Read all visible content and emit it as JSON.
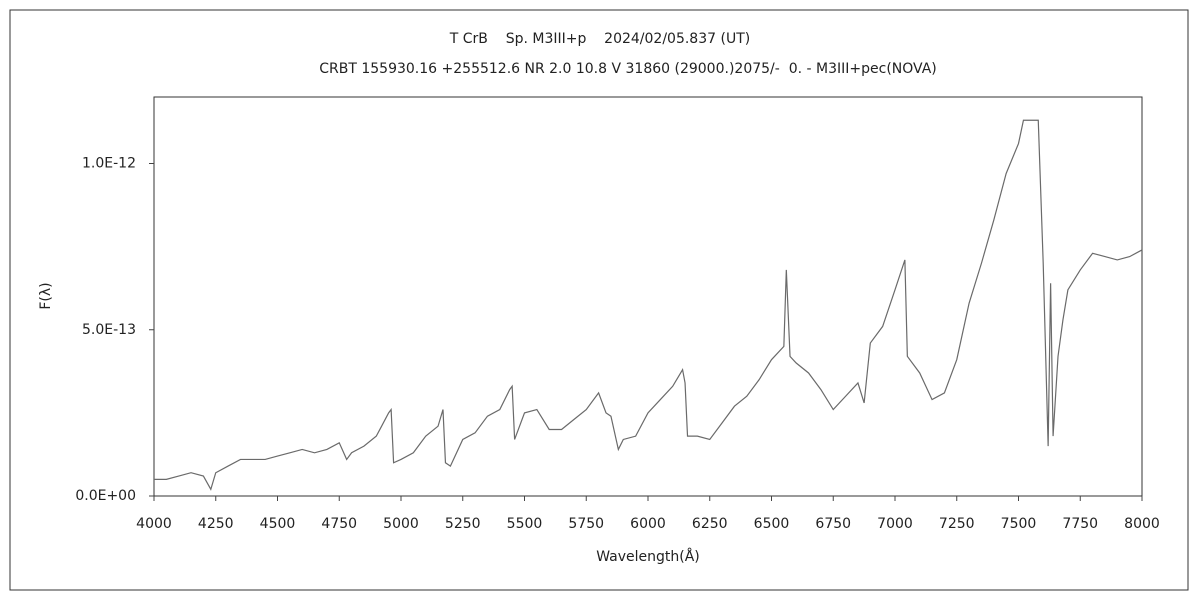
{
  "chart_data": {
    "type": "line",
    "title": "T CrB    Sp. M3III+p    2024/02/05.837 (UT)",
    "subtitle": "CRBT 155930.16 +255512.6 NR 2.0 10.8 V 31860 (29000.)2075/-  0. - M3III+pec(NOVA)",
    "x_label": "Wavelength(Å)",
    "y_label": "F(λ)",
    "color": "#6a6a6a",
    "xlim": [
      4000,
      8000
    ],
    "xticks": [
      4000,
      4250,
      4500,
      4750,
      5000,
      5250,
      5500,
      5750,
      6000,
      6250,
      6500,
      6750,
      7000,
      7250,
      7500,
      7750,
      8000
    ],
    "ylim": [
      0,
      1.2e-12
    ],
    "yticks": [
      {
        "value": 0,
        "label": "0.0E+00"
      },
      {
        "value": 5e-13,
        "label": "5.0E-13"
      },
      {
        "value": 1e-12,
        "label": "1.0E-12"
      }
    ],
    "x": [
      4000,
      4050,
      4100,
      4150,
      4200,
      4230,
      4250,
      4300,
      4350,
      4400,
      4450,
      4500,
      4550,
      4600,
      4650,
      4700,
      4750,
      4780,
      4800,
      4850,
      4900,
      4950,
      4960,
      4970,
      5000,
      5050,
      5100,
      5150,
      5170,
      5180,
      5200,
      5250,
      5300,
      5350,
      5400,
      5440,
      5450,
      5460,
      5500,
      5550,
      5600,
      5650,
      5700,
      5750,
      5800,
      5830,
      5850,
      5880,
      5900,
      5950,
      6000,
      6050,
      6100,
      6140,
      6150,
      6160,
      6200,
      6250,
      6300,
      6350,
      6400,
      6450,
      6500,
      6550,
      6560,
      6575,
      6600,
      6650,
      6700,
      6750,
      6800,
      6850,
      6875,
      6900,
      6950,
      7000,
      7040,
      7050,
      7100,
      7150,
      7200,
      7250,
      7300,
      7350,
      7400,
      7450,
      7500,
      7520,
      7550,
      7580,
      7600,
      7620,
      7630,
      7640,
      7660,
      7680,
      7700,
      7750,
      7800,
      7850,
      7900,
      7950,
      8000
    ],
    "values": [
      5e-14,
      5e-14,
      6e-14,
      7e-14,
      6e-14,
      2e-14,
      7e-14,
      9e-14,
      1.1e-13,
      1.1e-13,
      1.1e-13,
      1.2e-13,
      1.3e-13,
      1.4e-13,
      1.3e-13,
      1.4e-13,
      1.6e-13,
      1.1e-13,
      1.3e-13,
      1.5e-13,
      1.8e-13,
      2.5e-13,
      2.6e-13,
      1e-13,
      1.1e-13,
      1.3e-13,
      1.8e-13,
      2.1e-13,
      2.6e-13,
      1e-13,
      9e-14,
      1.7e-13,
      1.9e-13,
      2.4e-13,
      2.6e-13,
      3.2e-13,
      3.3e-13,
      1.7e-13,
      2.5e-13,
      2.6e-13,
      2e-13,
      2e-13,
      2.3e-13,
      2.6e-13,
      3.1e-13,
      2.5e-13,
      2.4e-13,
      1.4e-13,
      1.7e-13,
      1.8e-13,
      2.5e-13,
      2.9e-13,
      3.3e-13,
      3.8e-13,
      3.4e-13,
      1.8e-13,
      1.8e-13,
      1.7e-13,
      2.2e-13,
      2.7e-13,
      3e-13,
      3.5e-13,
      4.1e-13,
      4.5e-13,
      6.8e-13,
      4.2e-13,
      4e-13,
      3.7e-13,
      3.2e-13,
      2.6e-13,
      3e-13,
      3.4e-13,
      2.8e-13,
      4.6e-13,
      5.1e-13,
      6.2e-13,
      7.1e-13,
      4.2e-13,
      3.7e-13,
      2.9e-13,
      3.1e-13,
      4.1e-13,
      5.8e-13,
      7e-13,
      8.3e-13,
      9.7e-13,
      1.06e-12,
      1.13e-12,
      1.13e-12,
      1.13e-12,
      7e-13,
      1.5e-13,
      6.4e-13,
      1.8e-13,
      4.2e-13,
      5.3e-13,
      6.2e-13,
      6.8e-13,
      7.3e-13,
      7.2e-13,
      7.1e-13,
      7.2e-13,
      7.4e-13
    ]
  }
}
